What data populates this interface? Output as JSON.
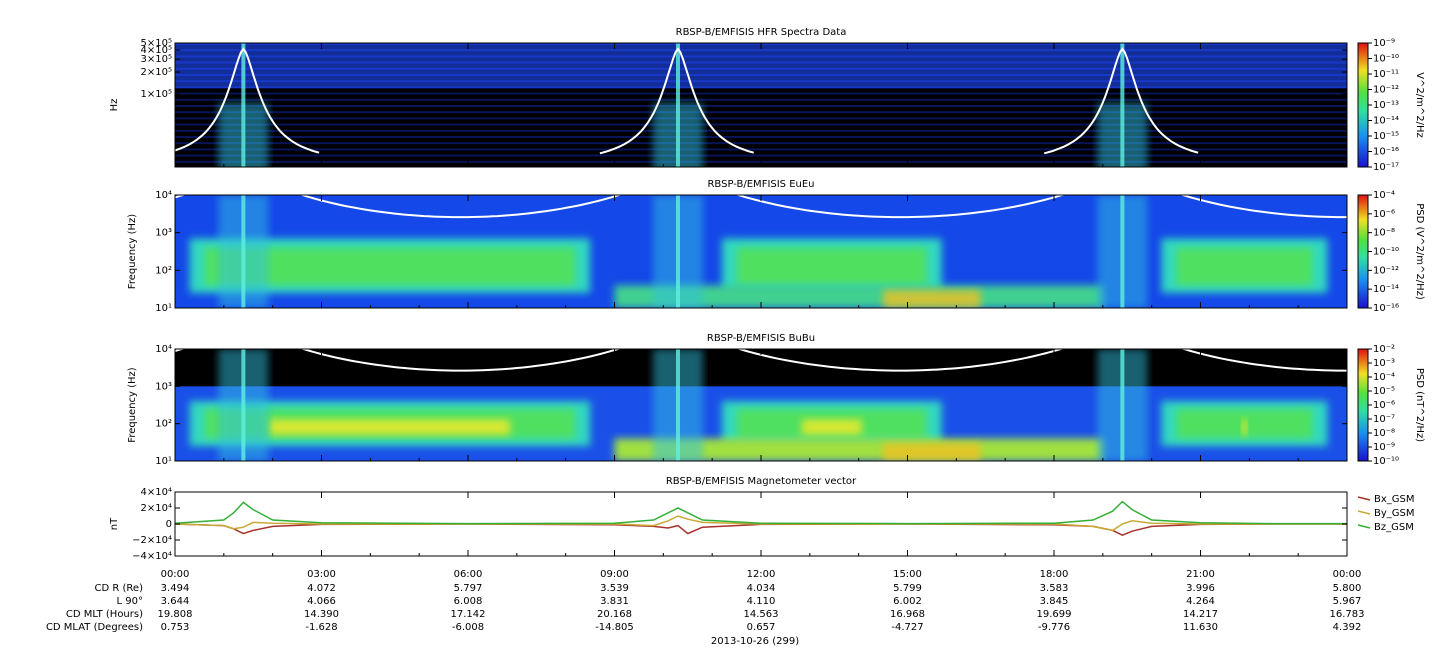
{
  "chart_data": [
    {
      "type": "spectrogram",
      "title": "RBSP-B/EMFISIS  HFR Spectra Data",
      "ylabel": "Hz",
      "ylog": true,
      "ylim": [
        10000,
        500000
      ],
      "yticks": [
        {
          "value": 500000,
          "label": "5×10⁵"
        },
        {
          "value": 400000,
          "label": "4×10⁵"
        },
        {
          "value": 300000,
          "label": "3×10⁵"
        },
        {
          "value": 200000,
          "label": "2×10⁵"
        },
        {
          "value": 100000,
          "label": "1×10⁵"
        }
      ],
      "zlabel": "V^2/m^2/Hz",
      "zlim": [
        1e-17,
        1e-09
      ],
      "zticks": [
        {
          "value": 1e-09,
          "label": "10⁻⁹"
        },
        {
          "value": 1e-10,
          "label": "10⁻¹⁰"
        },
        {
          "value": 1e-11,
          "label": "10⁻¹¹"
        },
        {
          "value": 1e-12,
          "label": "10⁻¹²"
        },
        {
          "value": 1e-13,
          "label": "10⁻¹³"
        },
        {
          "value": 1e-14,
          "label": "10⁻¹⁴"
        },
        {
          "value": 1e-15,
          "label": "10⁻¹⁵"
        },
        {
          "value": 1e-16,
          "label": "10⁻¹⁶"
        },
        {
          "value": 1e-17,
          "label": "10⁻¹⁷"
        }
      ]
    },
    {
      "type": "spectrogram",
      "title": "RBSP-B/EMFISIS  EuEu",
      "ylabel": "Frequency (Hz)",
      "ylog": true,
      "ylim": [
        10,
        10000
      ],
      "yticks": [
        {
          "value": 10000,
          "label": "10⁴"
        },
        {
          "value": 1000,
          "label": "10³"
        },
        {
          "value": 100,
          "label": "10²"
        },
        {
          "value": 10,
          "label": "10¹"
        }
      ],
      "zlabel": "PSD (V^2/m^2/Hz)",
      "zlim": [
        1e-16,
        0.0001
      ],
      "zticks": [
        {
          "value": 0.0001,
          "label": "10⁻⁴"
        },
        {
          "value": 1e-06,
          "label": "10⁻⁶"
        },
        {
          "value": 1e-08,
          "label": "10⁻⁸"
        },
        {
          "value": 1e-10,
          "label": "10⁻¹⁰"
        },
        {
          "value": 1e-12,
          "label": "10⁻¹²"
        },
        {
          "value": 1e-14,
          "label": "10⁻¹⁴"
        },
        {
          "value": 1e-16,
          "label": "10⁻¹⁶"
        }
      ]
    },
    {
      "type": "spectrogram",
      "title": "RBSP-B/EMFISIS  BuBu",
      "ylabel": "Frequency (Hz)",
      "ylog": true,
      "ylim": [
        10,
        10000
      ],
      "yticks": [
        {
          "value": 10000,
          "label": "10⁴"
        },
        {
          "value": 1000,
          "label": "10³"
        },
        {
          "value": 100,
          "label": "10²"
        },
        {
          "value": 10,
          "label": "10¹"
        }
      ],
      "zlabel": "PSD (nT^2/Hz)",
      "zlim": [
        1e-10,
        0.01
      ],
      "zticks": [
        {
          "value": 0.01,
          "label": "10⁻²"
        },
        {
          "value": 0.001,
          "label": "10⁻³"
        },
        {
          "value": 0.0001,
          "label": "10⁻⁴"
        },
        {
          "value": 1e-05,
          "label": "10⁻⁵"
        },
        {
          "value": 1e-06,
          "label": "10⁻⁶"
        },
        {
          "value": 1e-07,
          "label": "10⁻⁷"
        },
        {
          "value": 1e-08,
          "label": "10⁻⁸"
        },
        {
          "value": 1e-09,
          "label": "10⁻⁹"
        },
        {
          "value": 1e-10,
          "label": "10⁻¹⁰"
        }
      ]
    },
    {
      "type": "line",
      "title": "RBSP-B/EMFISIS  Magnetometer vector",
      "ylabel": "nT",
      "xlabel": "2013-10-26 (299)",
      "xlim": [
        0,
        24
      ],
      "xticks": [
        {
          "value": 0,
          "label": "00:00"
        },
        {
          "value": 3,
          "label": "03:00"
        },
        {
          "value": 6,
          "label": "06:00"
        },
        {
          "value": 9,
          "label": "09:00"
        },
        {
          "value": 12,
          "label": "12:00"
        },
        {
          "value": 15,
          "label": "15:00"
        },
        {
          "value": 18,
          "label": "18:00"
        },
        {
          "value": 21,
          "label": "21:00"
        },
        {
          "value": 24,
          "label": "00:00"
        }
      ],
      "ylim": [
        -40000,
        40000
      ],
      "yticks": [
        {
          "value": 40000,
          "label": "4×10⁴"
        },
        {
          "value": 20000,
          "label": "2×10⁴"
        },
        0,
        {
          "value": -20000,
          "label": "−2×10⁴"
        },
        {
          "value": -40000,
          "label": "−4×10⁴"
        }
      ],
      "x": [
        0,
        1,
        1.2,
        1.4,
        1.6,
        2,
        3,
        6,
        9,
        9.8,
        10.1,
        10.3,
        10.5,
        10.8,
        12,
        15,
        18,
        18.8,
        19.2,
        19.4,
        19.6,
        20,
        21,
        22.5,
        24
      ],
      "series": [
        {
          "name": "Bx_GSM",
          "color": "#a8322a",
          "values": [
            0,
            -2000,
            -6000,
            -12000,
            -8000,
            -3000,
            -500,
            0,
            -1000,
            -3000,
            -5000,
            -2000,
            -12000,
            -4000,
            -500,
            0,
            -1000,
            -3000,
            -8000,
            -14000,
            -9000,
            -3000,
            -500,
            0,
            0
          ]
        },
        {
          "name": "By_GSM",
          "color": "#c9a935",
          "values": [
            0,
            -2000,
            -6000,
            -4000,
            2000,
            1000,
            0,
            0,
            0,
            -2000,
            4000,
            10000,
            6000,
            2000,
            0,
            0,
            0,
            -3000,
            -8000,
            0,
            4000,
            1000,
            0,
            0,
            0
          ]
        },
        {
          "name": "Bz_GSM",
          "color": "#33b035",
          "values": [
            1000,
            5000,
            14000,
            27000,
            18000,
            5000,
            1500,
            500,
            1000,
            5000,
            14000,
            20000,
            14000,
            5000,
            1000,
            500,
            1000,
            5000,
            16000,
            28000,
            18000,
            5000,
            1500,
            500,
            500
          ]
        }
      ]
    }
  ],
  "ephemeris": [
    {
      "label": "CD R (Re)",
      "values": [
        "3.494",
        "4.072",
        "5.797",
        "3.539",
        "4.034",
        "5.799",
        "3.583",
        "3.996",
        "5.800"
      ]
    },
    {
      "label": "L 90°",
      "values": [
        "3.644",
        "4.066",
        "6.008",
        "3.831",
        "4.110",
        "6.002",
        "3.845",
        "4.264",
        "5.967"
      ]
    },
    {
      "label": "CD MLT (Hours)",
      "values": [
        "19.808",
        "14.390",
        "17.142",
        "20.168",
        "14.563",
        "16.968",
        "19.699",
        "14.217",
        "16.783"
      ]
    },
    {
      "label": "CD MLAT (Degrees)",
      "values": [
        "0.753",
        "-1.628",
        "-6.008",
        "-14.805",
        "0.657",
        "-4.727",
        "-9.776",
        "11.630",
        "4.392"
      ]
    }
  ]
}
